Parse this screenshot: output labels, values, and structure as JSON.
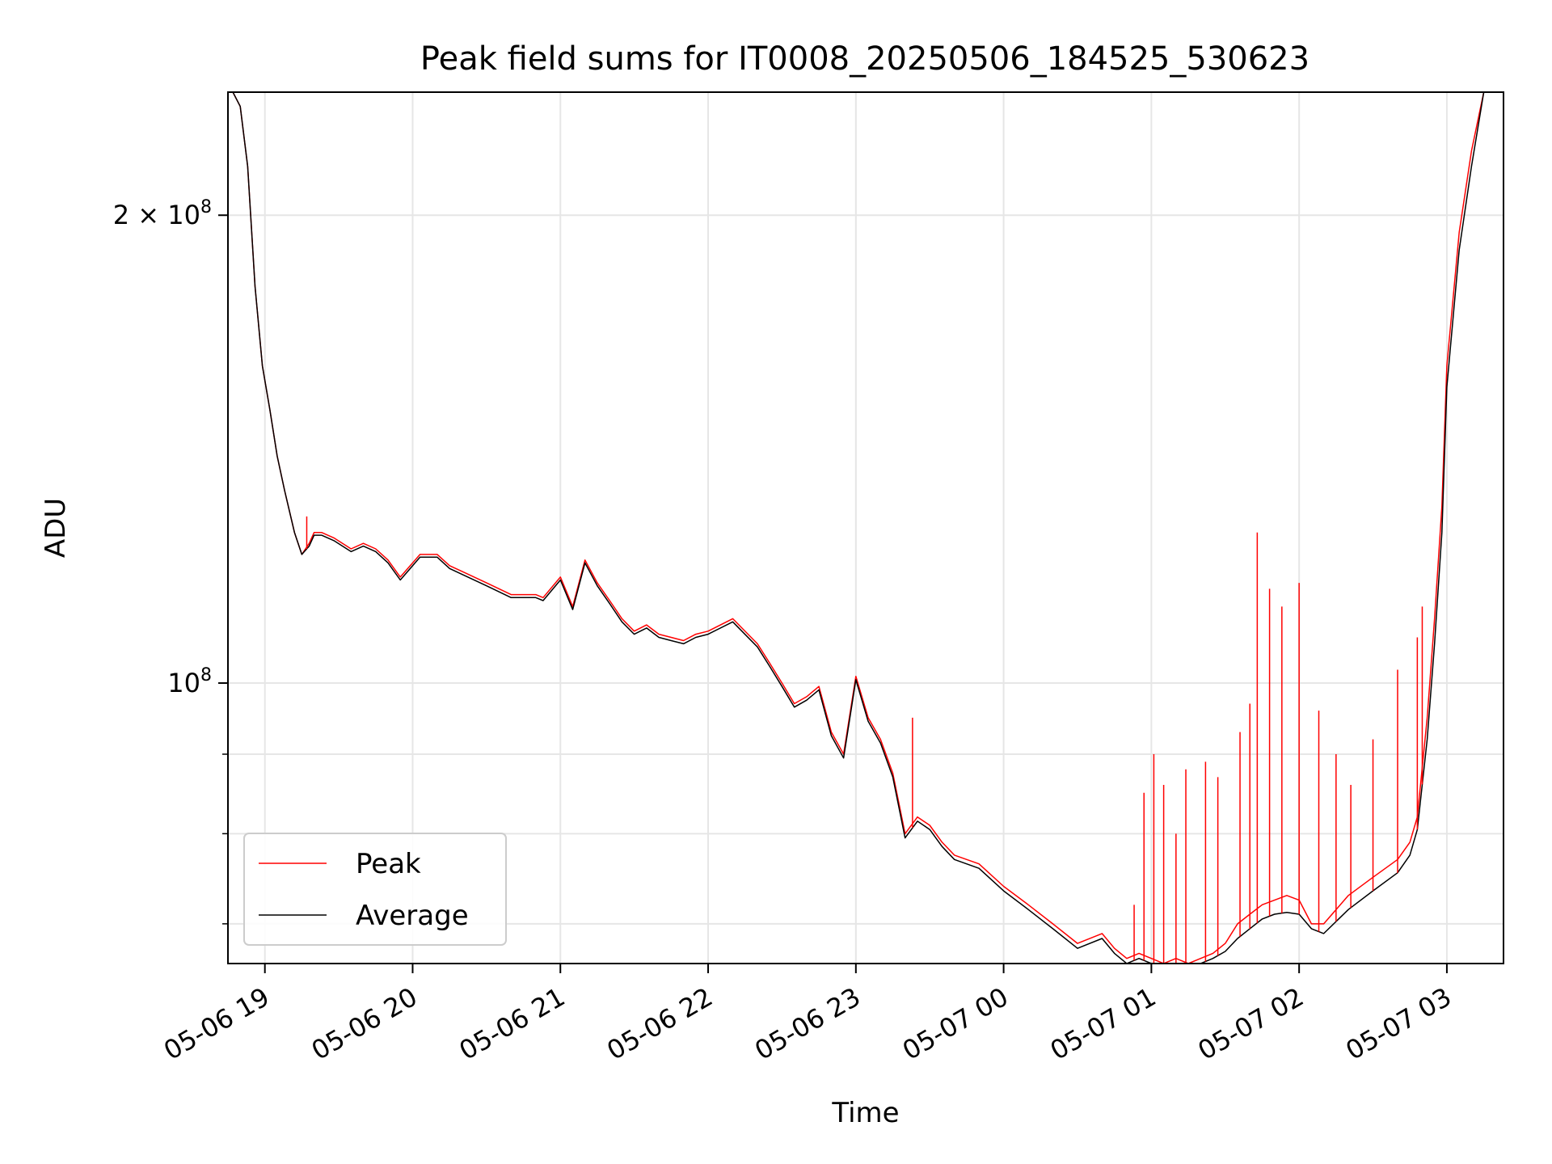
{
  "chart_data": {
    "type": "line",
    "title": "Peak field sums for IT0008_20250506_184525_530623",
    "xlabel": "Time",
    "ylabel": "ADU",
    "yscale": "log",
    "grid": true,
    "legend_position": "lower-left",
    "xlim": [
      "2025-05-06 18:45",
      "2025-05-07 03:23"
    ],
    "ylim": [
      66000000,
      240000000
    ],
    "x_ticks": [
      "05-06 19",
      "05-06 20",
      "05-06 21",
      "05-06 22",
      "05-06 23",
      "05-07 00",
      "05-07 01",
      "05-07 02",
      "05-07 03"
    ],
    "y_major_ticks": [
      {
        "value": 100000000,
        "label_mant": "",
        "label_base": "10",
        "label_exp": "8"
      },
      {
        "value": 200000000,
        "label_mant": "2 × ",
        "label_base": "10",
        "label_exp": "8"
      }
    ],
    "y_minor_ticks": [
      70000000,
      80000000,
      90000000
    ],
    "series": [
      {
        "name": "Peak",
        "color": "#ff0000",
        "x": [
          "2025-05-06 18:45",
          "2025-05-06 18:47",
          "2025-05-06 18:50",
          "2025-05-06 18:53",
          "2025-05-06 18:56",
          "2025-05-06 18:59",
          "2025-05-06 19:02",
          "2025-05-06 19:05",
          "2025-05-06 19:08",
          "2025-05-06 19:12",
          "2025-05-06 19:15",
          "2025-05-06 19:18",
          "2025-05-06 19:20",
          "2025-05-06 19:23",
          "2025-05-06 19:28",
          "2025-05-06 19:35",
          "2025-05-06 19:40",
          "2025-05-06 19:45",
          "2025-05-06 19:50",
          "2025-05-06 19:55",
          "2025-05-06 20:03",
          "2025-05-06 20:10",
          "2025-05-06 20:15",
          "2025-05-06 20:20",
          "2025-05-06 20:30",
          "2025-05-06 20:40",
          "2025-05-06 20:50",
          "2025-05-06 20:53",
          "2025-05-06 21:00",
          "2025-05-06 21:05",
          "2025-05-06 21:10",
          "2025-05-06 21:15",
          "2025-05-06 21:20",
          "2025-05-06 21:25",
          "2025-05-06 21:30",
          "2025-05-06 21:35",
          "2025-05-06 21:40",
          "2025-05-06 21:45",
          "2025-05-06 21:50",
          "2025-05-06 21:55",
          "2025-05-06 22:00",
          "2025-05-06 22:10",
          "2025-05-06 22:20",
          "2025-05-06 22:25",
          "2025-05-06 22:30",
          "2025-05-06 22:35",
          "2025-05-06 22:40",
          "2025-05-06 22:45",
          "2025-05-06 22:50",
          "2025-05-06 22:55",
          "2025-05-06 23:00",
          "2025-05-06 23:05",
          "2025-05-06 23:10",
          "2025-05-06 23:15",
          "2025-05-06 23:20",
          "2025-05-06 23:25",
          "2025-05-06 23:30",
          "2025-05-06 23:35",
          "2025-05-06 23:40",
          "2025-05-06 23:50",
          "2025-05-07 00:00",
          "2025-05-07 00:10",
          "2025-05-07 00:20",
          "2025-05-07 00:30",
          "2025-05-07 00:40",
          "2025-05-07 00:45",
          "2025-05-07 00:50",
          "2025-05-07 00:55",
          "2025-05-07 01:00",
          "2025-05-07 01:05",
          "2025-05-07 01:10",
          "2025-05-07 01:15",
          "2025-05-07 01:20",
          "2025-05-07 01:25",
          "2025-05-07 01:30",
          "2025-05-07 01:35",
          "2025-05-07 01:40",
          "2025-05-07 01:45",
          "2025-05-07 01:50",
          "2025-05-07 01:55",
          "2025-05-07 02:00",
          "2025-05-07 02:05",
          "2025-05-07 02:10",
          "2025-05-07 02:20",
          "2025-05-07 02:30",
          "2025-05-07 02:40",
          "2025-05-07 02:45",
          "2025-05-07 02:48",
          "2025-05-07 02:52",
          "2025-05-07 02:55",
          "2025-05-07 02:58",
          "2025-05-07 03:00",
          "2025-05-07 03:05",
          "2025-05-07 03:10",
          "2025-05-07 03:15",
          "2025-05-07 03:20",
          "2025-05-07 03:23"
        ],
        "y": [
          240000000,
          240000000,
          235000000,
          215000000,
          180000000,
          160000000,
          150000000,
          140000000,
          133000000,
          125000000,
          121000000,
          123000000,
          125000000,
          125000000,
          124000000,
          122000000,
          123000000,
          122000000,
          120000000,
          117000000,
          121000000,
          121000000,
          119000000,
          118000000,
          116000000,
          114000000,
          114000000,
          113500000,
          117000000,
          112000000,
          120000000,
          116000000,
          113000000,
          110000000,
          108000000,
          109000000,
          107500000,
          107000000,
          106500000,
          107500000,
          108000000,
          110000000,
          106000000,
          103000000,
          100000000,
          97000000,
          98000000,
          99500000,
          93000000,
          90000000,
          101000000,
          95000000,
          92000000,
          87500000,
          80000000,
          82000000,
          81000000,
          79000000,
          77500000,
          76500000,
          74000000,
          72000000,
          70000000,
          68000000,
          69000000,
          67500000,
          66500000,
          67000000,
          66500000,
          66000000,
          66500000,
          66000000,
          66500000,
          67000000,
          68000000,
          70000000,
          71000000,
          72000000,
          72500000,
          73000000,
          72500000,
          70000000,
          70000000,
          73000000,
          75000000,
          77000000,
          79000000,
          82000000,
          95000000,
          110000000,
          130000000,
          160000000,
          195000000,
          220000000,
          240000000,
          240000000,
          240000000
        ]
      },
      {
        "name": "Average",
        "color": "#000000",
        "x": [
          "2025-05-06 18:45",
          "2025-05-06 18:47",
          "2025-05-06 18:50",
          "2025-05-06 18:53",
          "2025-05-06 18:56",
          "2025-05-06 18:59",
          "2025-05-06 19:02",
          "2025-05-06 19:05",
          "2025-05-06 19:08",
          "2025-05-06 19:12",
          "2025-05-06 19:15",
          "2025-05-06 19:18",
          "2025-05-06 19:20",
          "2025-05-06 19:23",
          "2025-05-06 19:28",
          "2025-05-06 19:35",
          "2025-05-06 19:40",
          "2025-05-06 19:45",
          "2025-05-06 19:50",
          "2025-05-06 19:55",
          "2025-05-06 20:03",
          "2025-05-06 20:10",
          "2025-05-06 20:15",
          "2025-05-06 20:20",
          "2025-05-06 20:30",
          "2025-05-06 20:40",
          "2025-05-06 20:50",
          "2025-05-06 20:53",
          "2025-05-06 21:00",
          "2025-05-06 21:05",
          "2025-05-06 21:10",
          "2025-05-06 21:15",
          "2025-05-06 21:20",
          "2025-05-06 21:25",
          "2025-05-06 21:30",
          "2025-05-06 21:35",
          "2025-05-06 21:40",
          "2025-05-06 21:45",
          "2025-05-06 21:50",
          "2025-05-06 21:55",
          "2025-05-06 22:00",
          "2025-05-06 22:10",
          "2025-05-06 22:20",
          "2025-05-06 22:25",
          "2025-05-06 22:30",
          "2025-05-06 22:35",
          "2025-05-06 22:40",
          "2025-05-06 22:45",
          "2025-05-06 22:50",
          "2025-05-06 22:55",
          "2025-05-06 23:00",
          "2025-05-06 23:05",
          "2025-05-06 23:10",
          "2025-05-06 23:15",
          "2025-05-06 23:20",
          "2025-05-06 23:25",
          "2025-05-06 23:30",
          "2025-05-06 23:35",
          "2025-05-06 23:40",
          "2025-05-06 23:50",
          "2025-05-07 00:00",
          "2025-05-07 00:10",
          "2025-05-07 00:20",
          "2025-05-07 00:30",
          "2025-05-07 00:40",
          "2025-05-07 00:45",
          "2025-05-07 00:50",
          "2025-05-07 00:55",
          "2025-05-07 01:00",
          "2025-05-07 01:05",
          "2025-05-07 01:10",
          "2025-05-07 01:15",
          "2025-05-07 01:20",
          "2025-05-07 01:25",
          "2025-05-07 01:30",
          "2025-05-07 01:35",
          "2025-05-07 01:40",
          "2025-05-07 01:45",
          "2025-05-07 01:50",
          "2025-05-07 01:55",
          "2025-05-07 02:00",
          "2025-05-07 02:05",
          "2025-05-07 02:10",
          "2025-05-07 02:20",
          "2025-05-07 02:30",
          "2025-05-07 02:40",
          "2025-05-07 02:45",
          "2025-05-07 02:48",
          "2025-05-07 02:52",
          "2025-05-07 02:55",
          "2025-05-07 02:58",
          "2025-05-07 03:00",
          "2025-05-07 03:05",
          "2025-05-07 03:10",
          "2025-05-07 03:15",
          "2025-05-07 03:20",
          "2025-05-07 03:23"
        ],
        "y": [
          240000000,
          240000000,
          235000000,
          215000000,
          180000000,
          160000000,
          150000000,
          140000000,
          133000000,
          125000000,
          121000000,
          122500000,
          124500000,
          124500000,
          123500000,
          121500000,
          122500000,
          121500000,
          119500000,
          116500000,
          120500000,
          120500000,
          118500000,
          117500000,
          115500000,
          113500000,
          113500000,
          113000000,
          116500000,
          111500000,
          119500000,
          115500000,
          112500000,
          109500000,
          107500000,
          108500000,
          107000000,
          106500000,
          106000000,
          107000000,
          107500000,
          109500000,
          105500000,
          102500000,
          99500000,
          96500000,
          97500000,
          99000000,
          92500000,
          89500000,
          100500000,
          94500000,
          91500000,
          87000000,
          79500000,
          81500000,
          80500000,
          78500000,
          77000000,
          76000000,
          73500000,
          71500000,
          69500000,
          67500000,
          68500000,
          67000000,
          66000000,
          66500000,
          66000000,
          65500000,
          66000000,
          65500000,
          66000000,
          66500000,
          67200000,
          68500000,
          69500000,
          70500000,
          71000000,
          71200000,
          71000000,
          69500000,
          69000000,
          71500000,
          73500000,
          75500000,
          77500000,
          80500000,
          92000000,
          106000000,
          125000000,
          155000000,
          190000000,
          215000000,
          240000000,
          240000000,
          240000000
        ]
      }
    ],
    "spikes": {
      "color": "#ff0000",
      "x": [
        "2025-05-06 19:17",
        "2025-05-06 23:23",
        "2025-05-07 00:53",
        "2025-05-07 00:57",
        "2025-05-07 01:01",
        "2025-05-07 01:05",
        "2025-05-07 01:10",
        "2025-05-07 01:14",
        "2025-05-07 01:22",
        "2025-05-07 01:27",
        "2025-05-07 01:36",
        "2025-05-07 01:40",
        "2025-05-07 01:43",
        "2025-05-07 01:48",
        "2025-05-07 01:53",
        "2025-05-07 02:00",
        "2025-05-07 02:08",
        "2025-05-07 02:15",
        "2025-05-07 02:21",
        "2025-05-07 02:30",
        "2025-05-07 02:40",
        "2025-05-07 02:48",
        "2025-05-07 02:50"
      ],
      "y": [
        128000000,
        95000000,
        72000000,
        85000000,
        90000000,
        86000000,
        80000000,
        88000000,
        89000000,
        87000000,
        93000000,
        97000000,
        125000000,
        115000000,
        112000000,
        116000000,
        96000000,
        90000000,
        86000000,
        92000000,
        102000000,
        107000000,
        112000000
      ]
    }
  }
}
